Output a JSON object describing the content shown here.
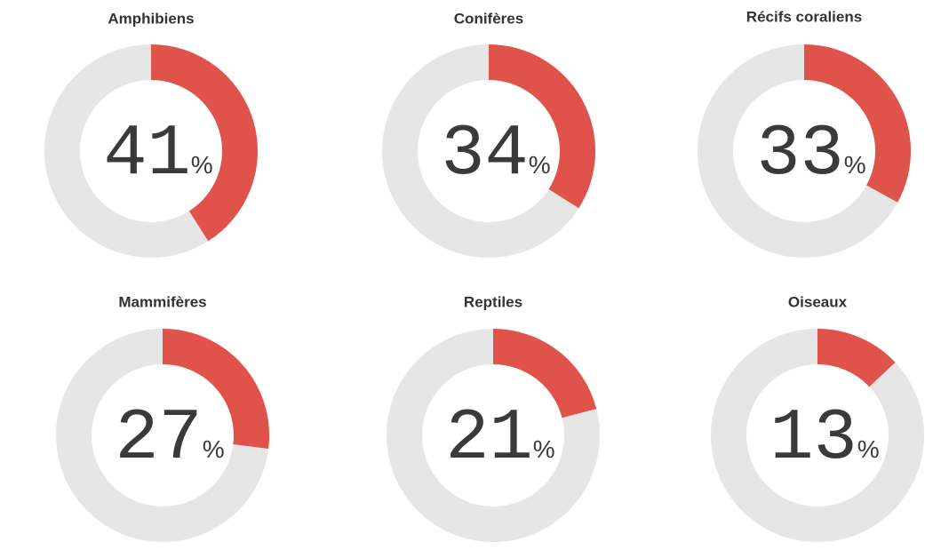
{
  "chart_data": [
    {
      "type": "donut",
      "title": "Amphibiens",
      "values": [
        41
      ],
      "unit": "%",
      "color": "#e0534a",
      "track_color": "#e6e6e6"
    },
    {
      "type": "donut",
      "title": "Conifères",
      "values": [
        34
      ],
      "unit": "%",
      "color": "#e0534a",
      "track_color": "#e6e6e6"
    },
    {
      "type": "donut",
      "title": "Récifs coraliens",
      "values": [
        33
      ],
      "unit": "%",
      "color": "#e0534a",
      "track_color": "#e6e6e6"
    },
    {
      "type": "donut",
      "title": "Mammifères",
      "values": [
        27
      ],
      "unit": "%",
      "color": "#e0534a",
      "track_color": "#e6e6e6"
    },
    {
      "type": "donut",
      "title": "Reptiles",
      "values": [
        21
      ],
      "unit": "%",
      "color": "#e0534a",
      "track_color": "#e6e6e6"
    },
    {
      "type": "donut",
      "title": "Oiseaux",
      "values": [
        13
      ],
      "unit": "%",
      "color": "#e0534a",
      "track_color": "#e6e6e6"
    }
  ]
}
